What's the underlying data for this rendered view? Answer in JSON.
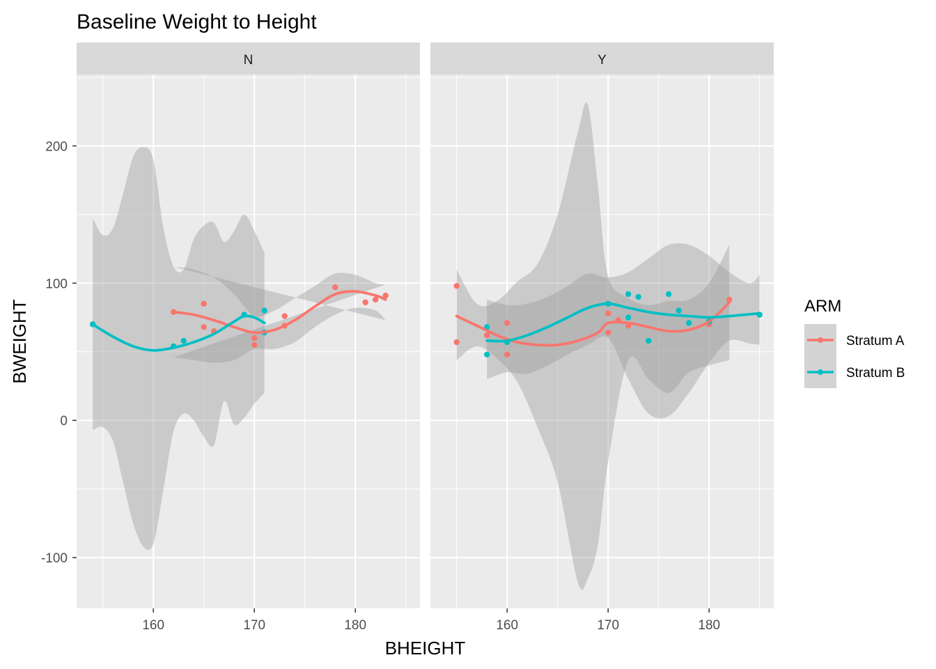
{
  "chart_data": {
    "type": "scatter",
    "title": "Baseline Weight to Height",
    "xlabel": "BHEIGHT",
    "ylabel": "BWEIGHT",
    "facet_labels": [
      "N",
      "Y"
    ],
    "xlim": [
      152.4,
      186.4
    ],
    "ylim": [
      -137,
      252
    ],
    "x_ticks": [
      160,
      170,
      180
    ],
    "y_ticks": [
      -100,
      0,
      100,
      200
    ],
    "x_tick_labels": [
      "160",
      "170",
      "180"
    ],
    "y_tick_labels": [
      "-100",
      "0",
      "100",
      "200"
    ],
    "grid": true,
    "legend": {
      "title": "ARM",
      "position": "right",
      "entries": [
        {
          "label": "Stratum A",
          "color": "#F8766D"
        },
        {
          "label": "Stratum B",
          "color": "#00BFC4"
        }
      ]
    },
    "panels": [
      {
        "label": "N",
        "series": [
          {
            "name": "Stratum A",
            "color": "#F8766D",
            "points": [
              [
                162,
                79
              ],
              [
                165,
                85
              ],
              [
                165,
                68
              ],
              [
                166,
                65
              ],
              [
                170,
                60
              ],
              [
                170,
                55
              ],
              [
                173,
                76
              ],
              [
                173,
                69
              ],
              [
                178,
                97
              ],
              [
                181,
                86
              ],
              [
                182,
                88
              ],
              [
                183,
                91
              ]
            ],
            "smooth": [
              [
                162,
                79
              ],
              [
                164,
                77
              ],
              [
                166,
                73
              ],
              [
                168,
                68
              ],
              [
                170,
                64
              ],
              [
                172,
                66
              ],
              [
                174,
                73
              ],
              [
                176,
                83
              ],
              [
                178,
                92
              ],
              [
                180,
                94
              ],
              [
                182,
                91
              ],
              [
                183,
                88
              ]
            ],
            "band_upper": [
              [
                162,
                112
              ],
              [
                164,
                110
              ],
              [
                166,
                104
              ],
              [
                168,
                92
              ],
              [
                170,
                76
              ],
              [
                172,
                80
              ],
              [
                174,
                89
              ],
              [
                176,
                98
              ],
              [
                178,
                107
              ],
              [
                180,
                106
              ],
              [
                182,
                100
              ],
              [
                183,
                99
              ]
            ],
            "band_lower": [
              [
                162,
                46
              ],
              [
                164,
                44
              ],
              [
                166,
                42
              ],
              [
                168,
                44
              ],
              [
                170,
                52
              ],
              [
                172,
                52
              ],
              [
                174,
                57
              ],
              [
                176,
                68
              ],
              [
                178,
                77
              ],
              [
                180,
                82
              ],
              [
                182,
                80
              ],
              [
                183,
                73
              ]
            ]
          },
          {
            "name": "Stratum B",
            "color": "#00BFC4",
            "points": [
              [
                154,
                70
              ],
              [
                162,
                54
              ],
              [
                163,
                58
              ],
              [
                169,
                77
              ],
              [
                171,
                64
              ],
              [
                171,
                80
              ]
            ],
            "smooth": [
              [
                154,
                70
              ],
              [
                156,
                61
              ],
              [
                158,
                54
              ],
              [
                160,
                51
              ],
              [
                162,
                53
              ],
              [
                164,
                57
              ],
              [
                166,
                63
              ],
              [
                168,
                72
              ],
              [
                169,
                76
              ],
              [
                170,
                75
              ],
              [
                171,
                71
              ]
            ],
            "band_upper": [
              [
                154,
                147
              ],
              [
                155,
                135
              ],
              [
                156,
                140
              ],
              [
                157,
                165
              ],
              [
                158,
                192
              ],
              [
                159,
                199
              ],
              [
                160,
                190
              ],
              [
                161,
                140
              ],
              [
                162,
                112
              ],
              [
                163,
                110
              ],
              [
                164,
                132
              ],
              [
                165,
                142
              ],
              [
                166,
                144
              ],
              [
                167,
                130
              ],
              [
                168,
                138
              ],
              [
                169,
                150
              ],
              [
                170,
                138
              ],
              [
                171,
                122
              ]
            ],
            "band_lower": [
              [
                171,
                20
              ],
              [
                170,
                12
              ],
              [
                169,
                2
              ],
              [
                168,
                -3
              ],
              [
                167,
                14
              ],
              [
                166,
                -18
              ],
              [
                165,
                -12
              ],
              [
                164,
                0
              ],
              [
                163,
                5
              ],
              [
                162,
                -8
              ],
              [
                161,
                -50
              ],
              [
                160,
                -90
              ],
              [
                159,
                -92
              ],
              [
                158,
                -75
              ],
              [
                157,
                -45
              ],
              [
                156,
                -15
              ],
              [
                155,
                -5
              ],
              [
                154,
                -7
              ]
            ]
          }
        ]
      },
      {
        "label": "Y",
        "series": [
          {
            "name": "Stratum A",
            "color": "#F8766D",
            "points": [
              [
                155,
                98
              ],
              [
                155,
                57
              ],
              [
                158,
                62
              ],
              [
                160,
                71
              ],
              [
                160,
                48
              ],
              [
                170,
                78
              ],
              [
                170,
                64
              ],
              [
                171,
                73
              ],
              [
                172,
                69
              ],
              [
                180,
                70
              ],
              [
                182,
                88
              ]
            ],
            "smooth": [
              [
                155,
                76
              ],
              [
                157,
                69
              ],
              [
                159,
                62
              ],
              [
                161,
                57
              ],
              [
                163,
                55
              ],
              [
                165,
                55
              ],
              [
                167,
                58
              ],
              [
                169,
                64
              ],
              [
                170,
                71
              ],
              [
                172,
                71
              ],
              [
                174,
                68
              ],
              [
                176,
                65
              ],
              [
                178,
                66
              ],
              [
                180,
                72
              ],
              [
                182,
                86
              ]
            ],
            "band_upper": [
              [
                155,
                110
              ],
              [
                157,
                85
              ],
              [
                159,
                87
              ],
              [
                161,
                101
              ],
              [
                163,
                114
              ],
              [
                165,
                150
              ],
              [
                167,
                210
              ],
              [
                168,
                230
              ],
              [
                169,
                170
              ],
              [
                170,
                105
              ],
              [
                172,
                89
              ],
              [
                174,
                84
              ],
              [
                176,
                87
              ],
              [
                178,
                88
              ],
              [
                180,
                100
              ],
              [
                182,
                128
              ]
            ],
            "band_lower": [
              [
                182,
                44
              ],
              [
                180,
                40
              ],
              [
                178,
                35
              ],
              [
                176,
                20
              ],
              [
                174,
                30
              ],
              [
                172,
                44
              ],
              [
                170,
                -30
              ],
              [
                169,
                -90
              ],
              [
                168,
                -115
              ],
              [
                167,
                -118
              ],
              [
                165,
                -45
              ],
              [
                163,
                -5
              ],
              [
                161,
                28
              ],
              [
                159,
                45
              ],
              [
                157,
                54
              ],
              [
                155,
                44
              ]
            ]
          },
          {
            "name": "Stratum B",
            "color": "#00BFC4",
            "points": [
              [
                158,
                48
              ],
              [
                158,
                68
              ],
              [
                160,
                57
              ],
              [
                170,
                85
              ],
              [
                172,
                92
              ],
              [
                172,
                75
              ],
              [
                173,
                90
              ],
              [
                174,
                58
              ],
              [
                176,
                92
              ],
              [
                177,
                80
              ],
              [
                178,
                71
              ],
              [
                180,
                72
              ],
              [
                185,
                77
              ]
            ],
            "smooth": [
              [
                158,
                58
              ],
              [
                160,
                58
              ],
              [
                162,
                62
              ],
              [
                164,
                68
              ],
              [
                166,
                75
              ],
              [
                168,
                82
              ],
              [
                170,
                85
              ],
              [
                172,
                82
              ],
              [
                174,
                79
              ],
              [
                176,
                77
              ],
              [
                178,
                76
              ],
              [
                180,
                75
              ],
              [
                182,
                76
              ],
              [
                185,
                78
              ]
            ],
            "band_upper": [
              [
                158,
                88
              ],
              [
                160,
                84
              ],
              [
                162,
                85
              ],
              [
                164,
                90
              ],
              [
                166,
                98
              ],
              [
                168,
                107
              ],
              [
                170,
                104
              ],
              [
                172,
                108
              ],
              [
                174,
                118
              ],
              [
                176,
                128
              ],
              [
                178,
                128
              ],
              [
                180,
                120
              ],
              [
                182,
                108
              ],
              [
                184,
                100
              ],
              [
                185,
                106
              ]
            ],
            "band_lower": [
              [
                185,
                55
              ],
              [
                184,
                56
              ],
              [
                182,
                58
              ],
              [
                180,
                42
              ],
              [
                178,
                20
              ],
              [
                176,
                3
              ],
              [
                174,
                5
              ],
              [
                172,
                30
              ],
              [
                170,
                60
              ],
              [
                168,
                55
              ],
              [
                166,
                48
              ],
              [
                164,
                40
              ],
              [
                162,
                34
              ],
              [
                160,
                35
              ],
              [
                158,
                30
              ]
            ]
          }
        ]
      }
    ]
  }
}
